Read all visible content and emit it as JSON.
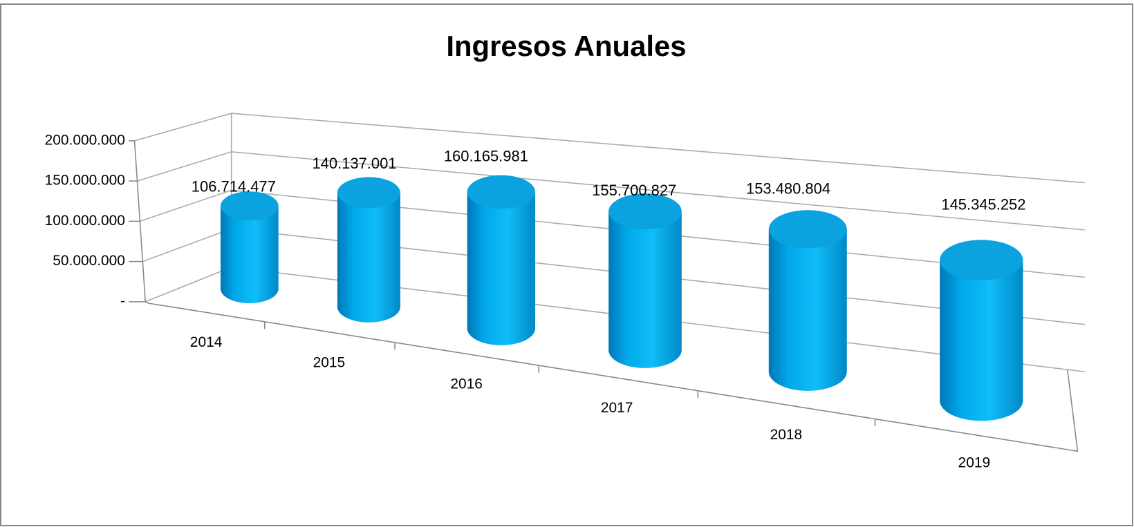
{
  "chart_data": {
    "type": "bar3d",
    "title": "Ingresos Anuales",
    "categories": [
      "2014",
      "2015",
      "2016",
      "2017",
      "2018",
      "2019"
    ],
    "values": [
      106714477,
      140137001,
      160165981,
      155700827,
      153480804,
      145345252
    ],
    "value_labels": [
      "106.714.477",
      "140.137.001",
      "160.165.981",
      "155.700.827",
      "153.480.804",
      "145.345.252"
    ],
    "color": "#00b0f0",
    "ylim": [
      0,
      200000000
    ],
    "yticks": [
      {
        "value": 0,
        "label": "-"
      },
      {
        "value": 50000000,
        "label": "50.000.000"
      },
      {
        "value": 100000000,
        "label": "100.000.000"
      },
      {
        "value": 150000000,
        "label": "150.000.000"
      },
      {
        "value": 200000000,
        "label": "200.000.000"
      }
    ],
    "grid": true
  }
}
